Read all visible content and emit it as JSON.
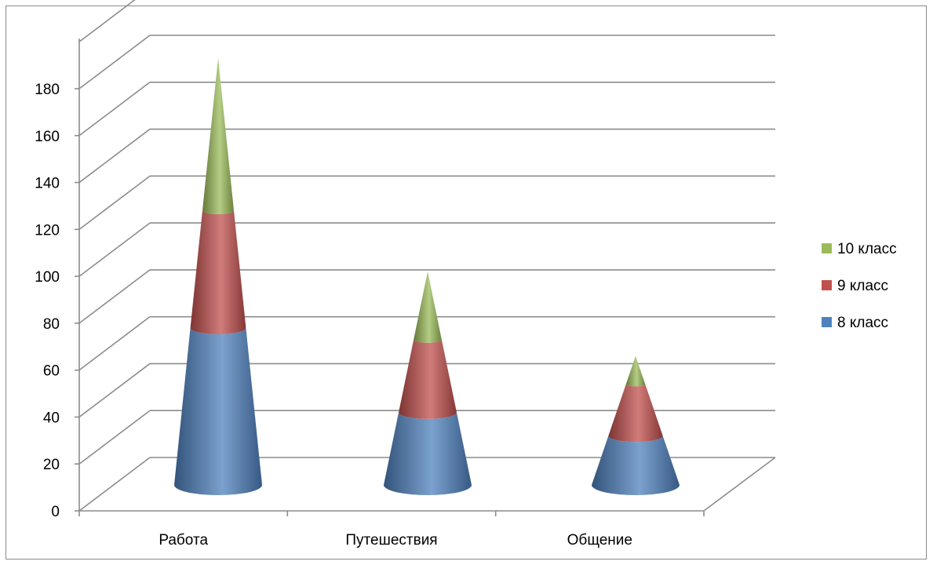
{
  "chart_data": {
    "type": "bar",
    "subtype": "3d-stacked-cone",
    "title": "",
    "xlabel": "",
    "ylabel": "",
    "categories": [
      "Работа",
      "Путешествия",
      "Общение"
    ],
    "series": [
      {
        "name": "8 класс",
        "values": [
          67,
          31,
          21
        ],
        "color": "#4f81bd"
      },
      {
        "name": "9 класс",
        "values": [
          50,
          31,
          22
        ],
        "color": "#c0504d"
      },
      {
        "name": "10 класс",
        "values": [
          65,
          29,
          12
        ],
        "color": "#9bbb59"
      }
    ],
    "ylim": [
      0,
      200
    ],
    "yticks": [
      0,
      20,
      40,
      60,
      80,
      100,
      120,
      140,
      160,
      180
    ],
    "grid": true,
    "legend_position": "right"
  }
}
